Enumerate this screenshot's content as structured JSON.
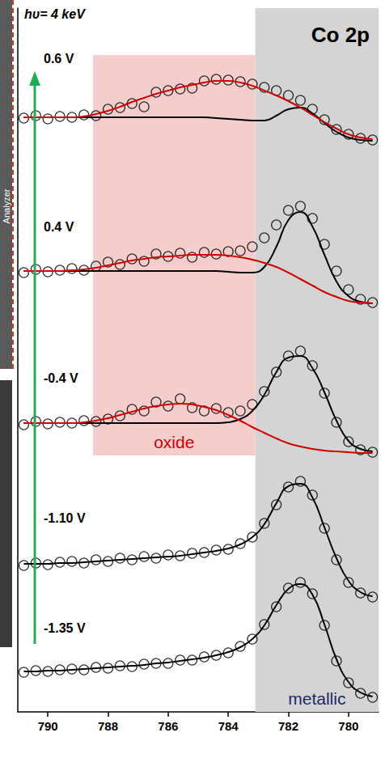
{
  "chart_data": {
    "type": "line",
    "title": "Co 2p",
    "annotations": [
      "hυ= 4 keV",
      "Analyzer"
    ],
    "x": [
      790.8,
      790.4,
      790.0,
      789.6,
      789.2,
      788.8,
      788.4,
      788.0,
      787.6,
      787.2,
      786.8,
      786.4,
      786.0,
      785.6,
      785.2,
      784.8,
      784.4,
      784.0,
      783.6,
      783.2,
      782.8,
      782.4,
      782.0,
      781.6,
      781.2,
      780.8,
      780.4,
      780.0,
      779.6,
      779.2
    ],
    "xlim": [
      791,
      779
    ],
    "xticks": [
      790,
      788,
      786,
      784,
      782,
      780
    ],
    "ylim": [
      0,
      870
    ],
    "tick_labels": "x",
    "grid": false,
    "regions": [
      {
        "label": "oxide",
        "xrange": [
          788.5,
          783.1
        ],
        "yrange": [
          317,
          812
        ],
        "color": "#f6cdcd",
        "label_color": "#cc0000"
      },
      {
        "label": "metallic",
        "xrange": [
          783.1,
          779
        ],
        "yrange": [
          0,
          870
        ],
        "color": "#d4d4d4",
        "label_color": "#1a2a6c"
      }
    ],
    "series": [
      {
        "name": "0.6 V",
        "type": "scatter",
        "marker": "circle",
        "color": "#000000",
        "values": [
          734,
          737,
          733,
          736,
          735,
          738,
          737,
          745,
          747,
          752,
          748,
          766,
          768,
          770,
          771,
          780,
          782,
          781,
          779,
          776,
          772,
          768,
          762,
          756,
          745,
          732,
          720,
          714,
          709,
          707
        ],
        "fits": [
          {
            "color": "#000000",
            "values": [
              735,
              735,
              735,
              735,
              735,
              735,
              735,
              735,
              735,
              735,
              735,
              735,
              735,
              735,
              735,
              735,
              734,
              733,
              732,
              731,
              731,
              737,
              745,
              747,
              740,
              728,
              717,
              710,
              707,
              706
            ]
          },
          {
            "color": "#d00000",
            "values": [
              735,
              735,
              735,
              735,
              735,
              736,
              739,
              743,
              748,
              754,
              759,
              764,
              768,
              772,
              775,
              778,
              780,
              780,
              778,
              774,
              768,
              762,
              755,
              747,
              738,
              729,
              721,
              714,
              710,
              708
            ]
          }
        ]
      },
      {
        "name": "0.4 V",
        "type": "scatter",
        "marker": "circle",
        "color": "#000000",
        "values": [
          543,
          547,
          544,
          546,
          548,
          546,
          551,
          556,
          553,
          560,
          557,
          566,
          563,
          567,
          562,
          568,
          566,
          569,
          570,
          575,
          586,
          602,
          620,
          625,
          610,
          578,
          545,
          522,
          510,
          506
        ],
        "fits": [
          {
            "color": "#000000",
            "values": [
              545,
              545,
              545,
              545,
              545,
              545,
              545,
              545,
              545,
              545,
              545,
              545,
              545,
              545,
              545,
              545,
              545,
              544,
              543,
              543,
              550,
              575,
              608,
              618,
              600,
              565,
              532,
              514,
              507,
              505
            ]
          },
          {
            "color": "#d00000",
            "values": [
              545,
              545,
              545,
              545,
              546,
              547,
              549,
              552,
              555,
              558,
              560,
              562,
              563,
              564,
              565,
              565,
              565,
              564,
              562,
              559,
              555,
              550,
              543,
              535,
              527,
              519,
              513,
              508,
              506,
              505
            ]
          }
        ]
      },
      {
        "name": "-0.4 V",
        "type": "scatter",
        "marker": "circle",
        "color": "#000000",
        "values": [
          355,
          359,
          356,
          358,
          357,
          360,
          359,
          362,
          366,
          374,
          372,
          383,
          378,
          387,
          376,
          372,
          375,
          370,
          372,
          380,
          396,
          420,
          440,
          446,
          428,
          394,
          358,
          334,
          324,
          321
        ],
        "fits": [
          {
            "color": "#000000",
            "values": [
              357,
              357,
              357,
              357,
              357,
              357,
              357,
              357,
              357,
              357,
              357,
              357,
              357,
              357,
              357,
              357,
              357,
              358,
              362,
              372,
              392,
              420,
              438,
              440,
              425,
              395,
              360,
              335,
              325,
              322
            ]
          },
          {
            "color": "#d00000",
            "values": [
              357,
              357,
              357,
              357,
              357,
              358,
              360,
              363,
              367,
              371,
              375,
              378,
              380,
              381,
              380,
              377,
              373,
              367,
              360,
              352,
              345,
              338,
              332,
              328,
              325,
              323,
              322,
              321,
              320,
              320
            ]
          }
        ]
      },
      {
        "name": "-1.10 V",
        "type": "scatter",
        "marker": "circle",
        "color": "#000000",
        "values": [
          181,
          184,
          182,
          185,
          186,
          184,
          188,
          186,
          190,
          188,
          192,
          190,
          194,
          193,
          196,
          197,
          200,
          201,
          208,
          216,
          233,
          256,
          278,
          285,
          268,
          227,
          188,
          160,
          147,
          142
        ],
        "fits": [
          {
            "color": "#000000",
            "values": [
              183,
              183,
              183,
              184,
              184,
              185,
              186,
              187,
              188,
              189,
              190,
              191,
              192,
              193,
              195,
              197,
              199,
              202,
              207,
              216,
              232,
              258,
              279,
              282,
              265,
              228,
              190,
              162,
              148,
              143
            ]
          }
        ]
      },
      {
        "name": "-1.35 V",
        "type": "scatter",
        "marker": "circle",
        "color": "#000000",
        "values": [
          49,
          51,
          50,
          52,
          53,
          52,
          55,
          54,
          57,
          56,
          59,
          60,
          60,
          64,
          64,
          68,
          70,
          73,
          81,
          90,
          108,
          130,
          153,
          160,
          146,
          107,
          63,
          36,
          23,
          18
        ],
        "fits": [
          {
            "color": "#000000",
            "values": [
              50,
              50,
              51,
              51,
              52,
              53,
              54,
              55,
              56,
              57,
              58,
              60,
              61,
              63,
              65,
              67,
              70,
              74,
              80,
              90,
              107,
              132,
              152,
              158,
              145,
              108,
              65,
              37,
              24,
              19
            ]
          }
        ]
      }
    ]
  }
}
